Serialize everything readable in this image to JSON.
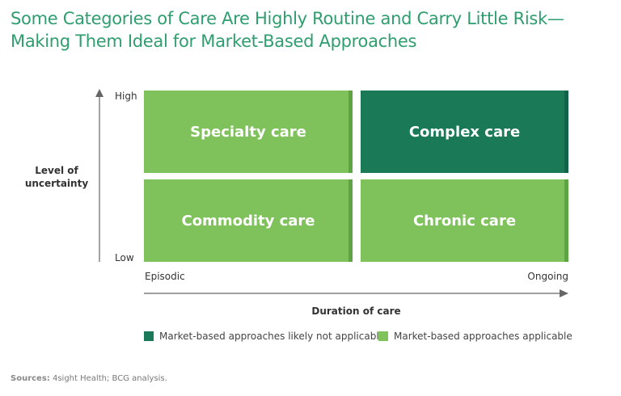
{
  "title": {
    "line1": "Some Categories of Care Are Highly Routine and Carry Little Risk—",
    "line2": "Making Them Ideal for Market-Based Approaches"
  },
  "quadrants": {
    "top_left": "Specialty care",
    "top_right": "Complex care",
    "bottom_left": "Commodity care",
    "bottom_right": "Chronic care"
  },
  "y_axis": {
    "label": "Level of uncertainty",
    "high": "High",
    "low": "Low"
  },
  "x_axis": {
    "label": "Duration of care",
    "start": "Episodic",
    "end": "Ongoing"
  },
  "legend": {
    "not_applicable": "Market-based approaches likely not applicable",
    "applicable": "Market-based approaches applicable"
  },
  "source": {
    "label": "Sources:",
    "text": "4sight Health; BCG analysis."
  },
  "colors": {
    "light_green": "#7fc25c",
    "light_green_edge": "#5fa444",
    "dark_green": "#1a7a57",
    "dark_green_edge": "#11644a",
    "title": "#2f9e6f",
    "axis": "#666666"
  }
}
